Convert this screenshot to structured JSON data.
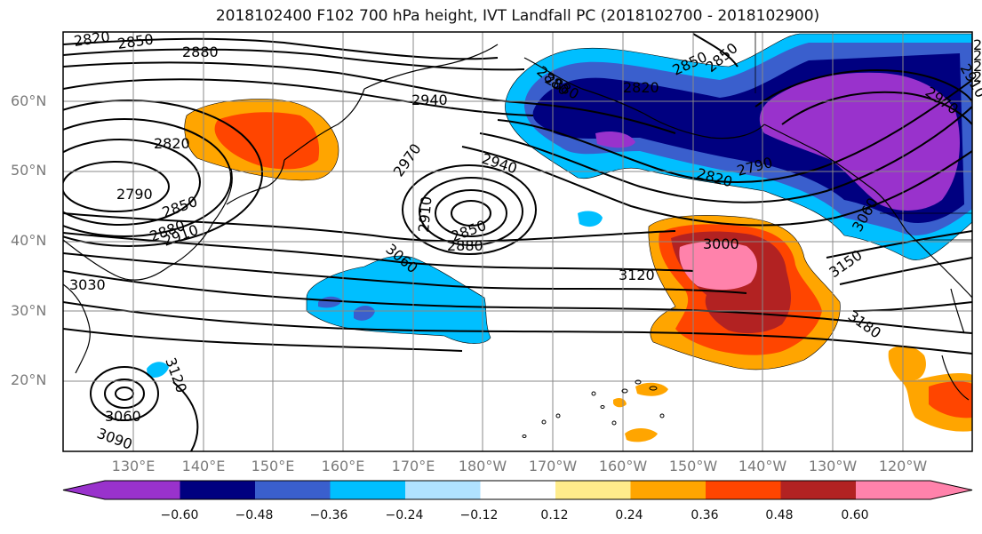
{
  "title": "2018102400 F102 700 hPa height, IVT Landfall PC (2018102700 - 2018102900)",
  "lat_labels": [
    "60°N",
    "50°N",
    "40°N",
    "30°N",
    "20°N"
  ],
  "lon_labels": [
    "130°E",
    "140°E",
    "150°E",
    "160°E",
    "170°E",
    "180°W",
    "170°W",
    "160°W",
    "150°W",
    "140°W",
    "130°W",
    "120°W"
  ],
  "contour_labels": [
    "2820",
    "2850",
    "2880",
    "2940",
    "2970",
    "2910",
    "2850",
    "2880",
    "3030",
    "3060",
    "2850",
    "2880",
    "2940",
    "2910",
    "2970",
    "2790",
    "2820",
    "2850",
    "2880",
    "3000",
    "3060",
    "3120",
    "3150",
    "3180",
    "2820",
    "2850",
    "2790",
    "2880",
    "3060",
    "3090",
    "3120",
    "2910",
    "2820",
    "2790",
    "2820",
    "2880",
    "2850"
  ],
  "colorbar": {
    "colors": [
      "#9932cc",
      "#000080",
      "#3a5fcd",
      "#00bfff",
      "#b0e2ff",
      "#ffffff",
      "#ffec8b",
      "#ffa500",
      "#ff4500",
      "#b22222",
      "#ff82ab"
    ],
    "tick_labels": [
      "−0.60",
      "−0.48",
      "−0.36",
      "−0.24",
      "−0.12",
      "0.12",
      "0.24",
      "0.36",
      "0.48",
      "0.60"
    ]
  }
}
